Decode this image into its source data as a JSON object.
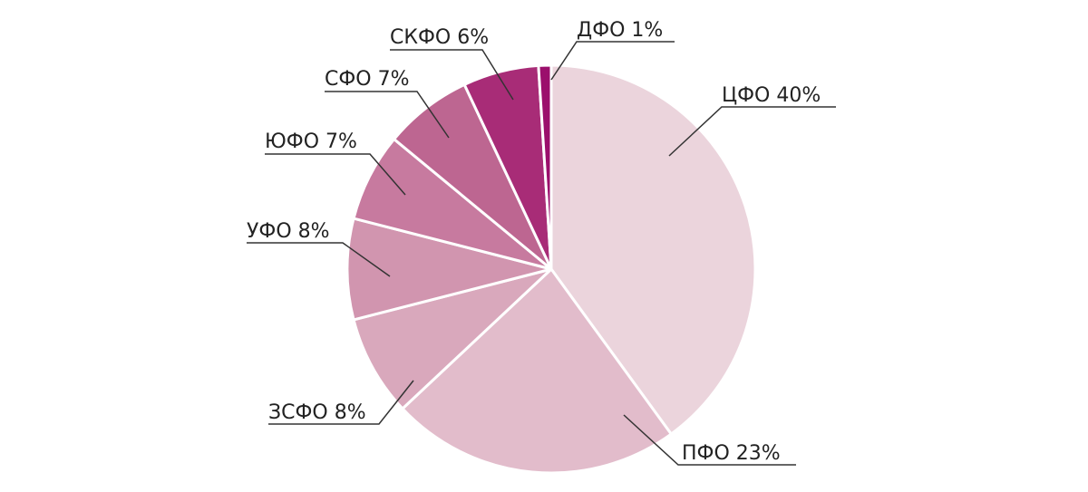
{
  "chart_data": {
    "type": "pie",
    "slices": [
      {
        "label": "ЦФО 40%",
        "value": 40,
        "color": "#ebd4dc"
      },
      {
        "label": "ПФО 23%",
        "value": 23,
        "color": "#e2bccb"
      },
      {
        "label": "ЗСФО 8%",
        "value": 8,
        "color": "#d9a8bc"
      },
      {
        "label": "УФО 8%",
        "value": 8,
        "color": "#d195af"
      },
      {
        "label": "ЮФО 7%",
        "value": 7,
        "color": "#c77a9f"
      },
      {
        "label": "СФО 7%",
        "value": 7,
        "color": "#bd6691"
      },
      {
        "label": "СКФО 6%",
        "value": 6,
        "color": "#a82c77"
      },
      {
        "label": "ДФО 1%",
        "value": 1,
        "color": "#9b0f6c"
      }
    ]
  }
}
